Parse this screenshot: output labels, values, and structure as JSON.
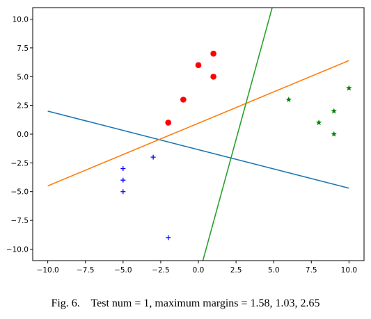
{
  "chart_data": {
    "type": "scatter",
    "xlim": [
      -11.0,
      11.0
    ],
    "ylim": [
      -11.0,
      11.0
    ],
    "xticks": [
      -10.0,
      -7.5,
      -5.0,
      -2.5,
      0.0,
      2.5,
      5.0,
      7.5,
      10.0
    ],
    "yticks": [
      -10.0,
      -7.5,
      -5.0,
      -2.5,
      0.0,
      2.5,
      5.0,
      7.5,
      10.0
    ],
    "xtick_labels": [
      "−10.0",
      "−7.5",
      "−5.0",
      "−2.5",
      "0.0",
      "2.5",
      "5.0",
      "7.5",
      "10.0"
    ],
    "ytick_labels": [
      "−10.0",
      "−7.5",
      "−5.0",
      "−2.5",
      "0.0",
      "2.5",
      "5.0",
      "7.5",
      "10.0"
    ],
    "grid": false,
    "points": [
      {
        "marker": "circle",
        "color": "#ff0000",
        "x": [
          -2,
          -1,
          0,
          1,
          1
        ],
        "y": [
          1,
          3,
          6,
          7,
          5
        ]
      },
      {
        "marker": "star",
        "color": "#008000",
        "x": [
          6,
          8,
          9,
          9,
          10
        ],
        "y": [
          3,
          1,
          2,
          0,
          4
        ]
      },
      {
        "marker": "plus",
        "color": "#0000ff",
        "x": [
          -5,
          -5,
          -5,
          -3,
          -2
        ],
        "y": [
          -3,
          -4,
          -5,
          -2,
          -9
        ]
      }
    ],
    "lines": [
      {
        "color": "#1f77b4",
        "x": [
          -10,
          10
        ],
        "y": [
          2.0,
          -4.7
        ]
      },
      {
        "color": "#ff7f0e",
        "x": [
          -10,
          10
        ],
        "y": [
          -4.5,
          6.4
        ]
      },
      {
        "color": "#2ca02c",
        "x": [
          0.3,
          4.9
        ],
        "y": [
          -11.0,
          11.0
        ]
      }
    ]
  },
  "caption": "Fig. 6.    Test num = 1, maximum margins = 1.58, 1.03, 2.65"
}
